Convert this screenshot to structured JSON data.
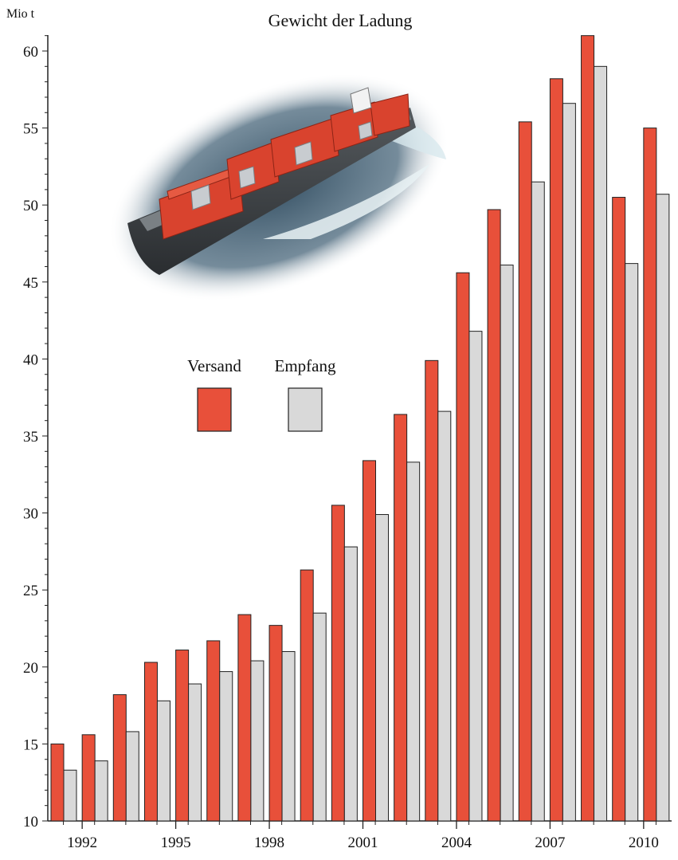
{
  "chart_data": {
    "type": "bar",
    "title": "Gewicht der Ladung",
    "ylabel": "Mio t",
    "xlabel": "",
    "ylim": [
      10,
      61
    ],
    "y_ticks": [
      10,
      15,
      20,
      25,
      30,
      35,
      40,
      45,
      50,
      55,
      60
    ],
    "x_tick_labels": [
      "1992",
      "1995",
      "1998",
      "2001",
      "2004",
      "2007",
      "2010"
    ],
    "x_tick_years": [
      1992,
      1995,
      1998,
      2001,
      2004,
      2007,
      2010
    ],
    "years": [
      1991,
      1992,
      1993,
      1994,
      1995,
      1996,
      1997,
      1998,
      1999,
      2000,
      2001,
      2002,
      2003,
      2004,
      2005,
      2006,
      2007,
      2008,
      2009,
      2010
    ],
    "grid": false,
    "legend_position": "center-left",
    "series": [
      {
        "name": "Versand",
        "color": "#e8503a",
        "values": [
          15.0,
          15.6,
          18.2,
          20.3,
          21.1,
          21.7,
          23.4,
          22.7,
          26.3,
          30.5,
          33.4,
          36.4,
          39.9,
          45.6,
          49.7,
          55.4,
          58.2,
          61.0,
          50.5,
          55.0
        ]
      },
      {
        "name": "Empfang",
        "color": "#d9d9d9",
        "values": [
          13.3,
          13.9,
          15.8,
          17.8,
          18.9,
          19.7,
          20.4,
          21.0,
          23.5,
          27.8,
          29.9,
          33.3,
          36.6,
          41.8,
          46.1,
          51.5,
          56.6,
          59.0,
          46.2,
          50.7
        ]
      }
    ],
    "image": {
      "name": "container-ship-photo"
    }
  }
}
